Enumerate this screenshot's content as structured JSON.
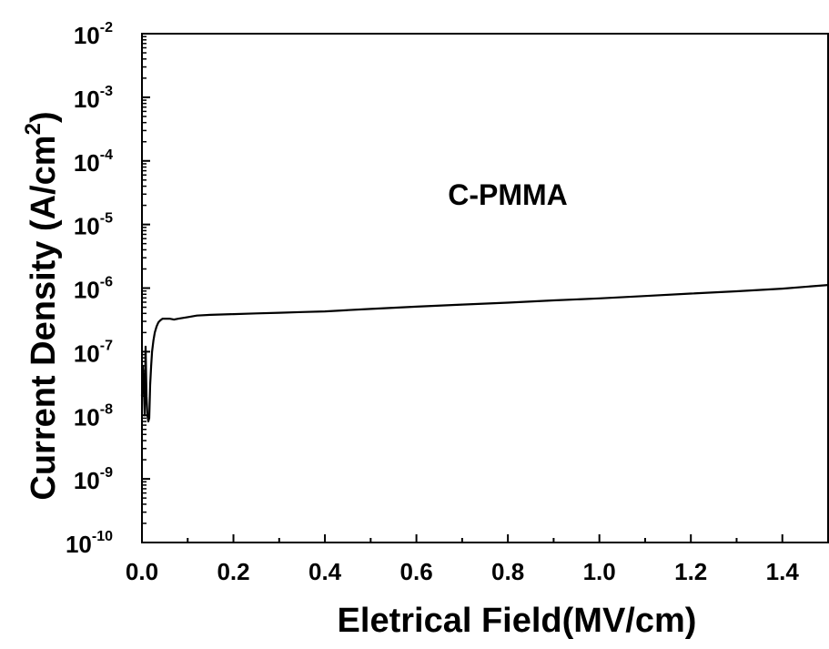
{
  "chart_data": {
    "type": "line",
    "xlabel": "Eletrical Field(MV/cm)",
    "ylabel": {
      "main": "Current Density (A/cm",
      "sup": "2",
      "close": ")"
    },
    "annotation": "C-PMMA",
    "xlim": [
      0,
      1.5
    ],
    "ylim_log10": [
      -10,
      -2
    ],
    "yscale": "log",
    "grid": false,
    "x_ticks": [
      "0.0",
      "0.2",
      "0.4",
      "0.6",
      "0.8",
      "1.0",
      "1.2",
      "1.4"
    ],
    "x_tick_values": [
      0.0,
      0.2,
      0.4,
      0.6,
      0.8,
      1.0,
      1.2,
      1.4
    ],
    "y_ticks": [
      {
        "base": "10",
        "exp": "-10",
        "value_exp": -10
      },
      {
        "base": "10",
        "exp": "-9",
        "value_exp": -9
      },
      {
        "base": "10",
        "exp": "-8",
        "value_exp": -8
      },
      {
        "base": "10",
        "exp": "-7",
        "value_exp": -7
      },
      {
        "base": "10",
        "exp": "-6",
        "value_exp": -6
      },
      {
        "base": "10",
        "exp": "-5",
        "value_exp": -5
      },
      {
        "base": "10",
        "exp": "-4",
        "value_exp": -4
      },
      {
        "base": "10",
        "exp": "-3",
        "value_exp": -3
      },
      {
        "base": "10",
        "exp": "-2",
        "value_exp": -2
      }
    ],
    "series": [
      {
        "color": "#000000",
        "x": [
          0.0,
          0.002,
          0.004,
          0.006,
          0.008,
          0.01,
          0.012,
          0.014,
          0.016,
          0.018,
          0.02,
          0.022,
          0.025,
          0.028,
          0.032,
          0.036,
          0.04,
          0.045,
          0.05,
          0.06,
          0.07,
          0.08,
          0.1,
          0.12,
          0.15,
          0.2,
          0.25,
          0.3,
          0.35,
          0.4,
          0.45,
          0.5,
          0.6,
          0.7,
          0.8,
          0.9,
          1.0,
          1.1,
          1.2,
          1.3,
          1.4,
          1.5
        ],
        "y": [
          2e-08,
          6e-08,
          3e-08,
          1e-08,
          1.2e-07,
          2e-08,
          1e-08,
          8e-09,
          9e-09,
          3e-08,
          6e-08,
          1e-07,
          1.5e-07,
          2e-07,
          2.5e-07,
          2.9e-07,
          3.1e-07,
          3.3e-07,
          3.3e-07,
          3.3e-07,
          3.2e-07,
          3.3e-07,
          3.5e-07,
          3.7e-07,
          3.8e-07,
          3.9e-07,
          4e-07,
          4.1e-07,
          4.2e-07,
          4.3e-07,
          4.5e-07,
          4.7e-07,
          5.1e-07,
          5.5e-07,
          5.9e-07,
          6.4e-07,
          6.9e-07,
          7.5e-07,
          8.2e-07,
          8.9e-07,
          9.8e-07,
          1.12e-06
        ]
      }
    ]
  }
}
